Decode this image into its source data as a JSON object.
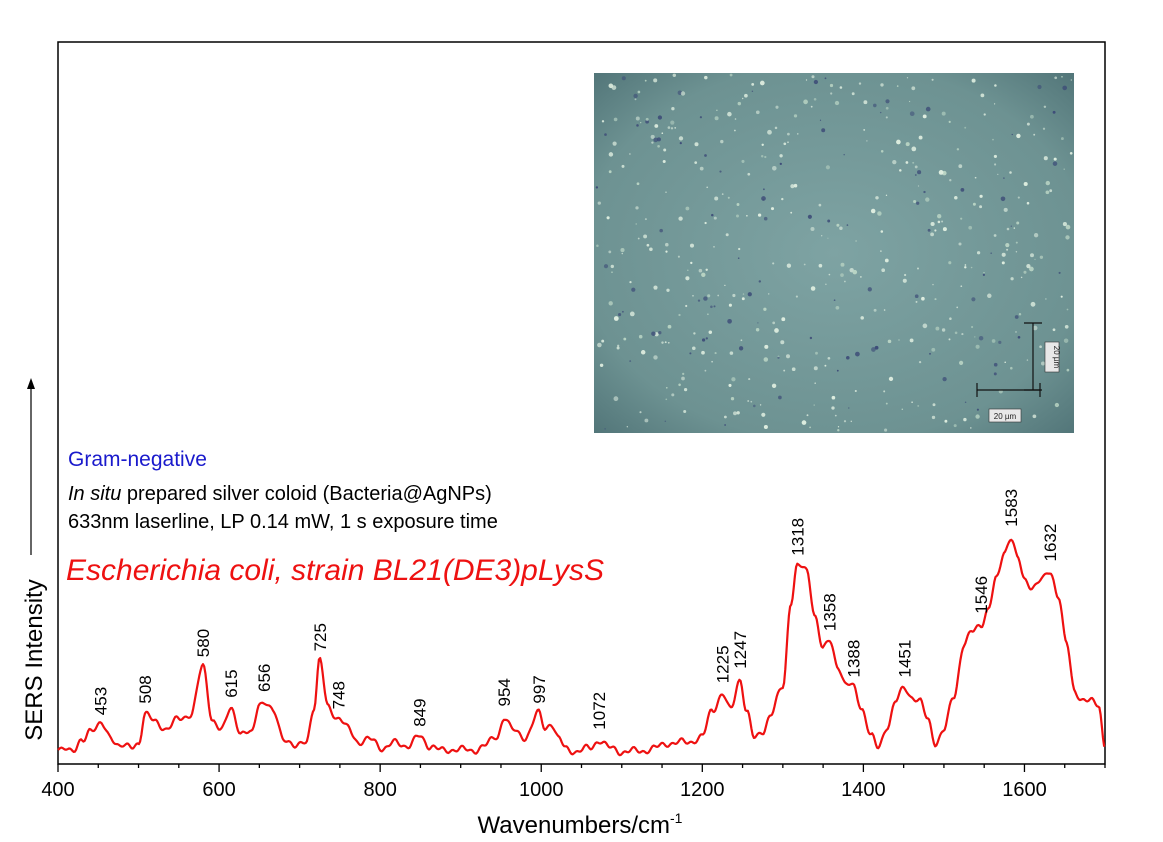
{
  "chart_data": {
    "type": "line",
    "xlabel": "Wavenumbers/cm",
    "xlabel_sup": "-1",
    "ylabel": "SERS Intensity",
    "xlim": [
      400,
      1700
    ],
    "ylim": [
      0,
      100
    ],
    "x_ticks": [
      400,
      600,
      800,
      1000,
      1200,
      1400,
      1600
    ],
    "grid": false,
    "y_ticks_shown": false,
    "annotations": {
      "category": "Gram-negative",
      "prep_italic": "In situ",
      "prep_rest": " prepared silver coloid (Bacteria@AgNPs)",
      "conditions": "633nm laserline, LP 0.14 mW, 1 s exposure time",
      "organism": "Escherichia coli, strain BL21(DE3)pLysS"
    },
    "peak_labels": [
      {
        "x": 453,
        "label": "453"
      },
      {
        "x": 508,
        "label": "508"
      },
      {
        "x": 580,
        "label": "580"
      },
      {
        "x": 615,
        "label": "615"
      },
      {
        "x": 656,
        "label": "656"
      },
      {
        "x": 725,
        "label": "725"
      },
      {
        "x": 748,
        "label": "748"
      },
      {
        "x": 849,
        "label": "849"
      },
      {
        "x": 954,
        "label": "954"
      },
      {
        "x": 997,
        "label": "997"
      },
      {
        "x": 1072,
        "label": "1072"
      },
      {
        "x": 1225,
        "label": "1225"
      },
      {
        "x": 1247,
        "label": "1247"
      },
      {
        "x": 1318,
        "label": "1318"
      },
      {
        "x": 1358,
        "label": "1358"
      },
      {
        "x": 1388,
        "label": "1388"
      },
      {
        "x": 1451,
        "label": "1451"
      },
      {
        "x": 1546,
        "label": "1546"
      },
      {
        "x": 1583,
        "label": "1583"
      },
      {
        "x": 1632,
        "label": "1632"
      }
    ],
    "series": [
      {
        "color": "#ee1111",
        "points": [
          [
            400,
            3
          ],
          [
            410,
            5
          ],
          [
            420,
            3
          ],
          [
            430,
            6
          ],
          [
            440,
            11
          ],
          [
            453,
            12
          ],
          [
            465,
            8
          ],
          [
            478,
            5
          ],
          [
            490,
            4
          ],
          [
            500,
            6
          ],
          [
            508,
            16
          ],
          [
            520,
            13
          ],
          [
            535,
            11
          ],
          [
            550,
            14
          ],
          [
            565,
            16
          ],
          [
            580,
            32
          ],
          [
            592,
            14
          ],
          [
            603,
            10
          ],
          [
            615,
            18
          ],
          [
            628,
            9
          ],
          [
            640,
            9
          ],
          [
            650,
            20
          ],
          [
            656,
            20
          ],
          [
            668,
            16
          ],
          [
            680,
            8
          ],
          [
            695,
            4
          ],
          [
            708,
            7
          ],
          [
            718,
            18
          ],
          [
            725,
            34
          ],
          [
            735,
            19
          ],
          [
            748,
            14
          ],
          [
            760,
            11
          ],
          [
            775,
            6
          ],
          [
            790,
            7
          ],
          [
            805,
            4
          ],
          [
            820,
            6
          ],
          [
            835,
            5
          ],
          [
            849,
            8
          ],
          [
            862,
            5
          ],
          [
            878,
            3
          ],
          [
            895,
            4
          ],
          [
            912,
            3
          ],
          [
            930,
            5
          ],
          [
            945,
            8
          ],
          [
            954,
            15
          ],
          [
            965,
            10
          ],
          [
            980,
            8
          ],
          [
            997,
            16
          ],
          [
            1005,
            11
          ],
          [
            1012,
            13
          ],
          [
            1022,
            7
          ],
          [
            1030,
            4
          ],
          [
            1045,
            3
          ],
          [
            1060,
            4
          ],
          [
            1072,
            7
          ],
          [
            1085,
            4
          ],
          [
            1100,
            3
          ],
          [
            1120,
            3
          ],
          [
            1140,
            4
          ],
          [
            1160,
            6
          ],
          [
            1180,
            6
          ],
          [
            1200,
            8
          ],
          [
            1212,
            17
          ],
          [
            1225,
            23
          ],
          [
            1235,
            17
          ],
          [
            1247,
            28
          ],
          [
            1255,
            17
          ],
          [
            1265,
            7
          ],
          [
            1275,
            10
          ],
          [
            1285,
            16
          ],
          [
            1300,
            25
          ],
          [
            1310,
            55
          ],
          [
            1318,
            67
          ],
          [
            1330,
            65
          ],
          [
            1340,
            50
          ],
          [
            1350,
            38
          ],
          [
            1358,
            41
          ],
          [
            1368,
            33
          ],
          [
            1378,
            26
          ],
          [
            1388,
            25
          ],
          [
            1398,
            18
          ],
          [
            1410,
            8
          ],
          [
            1418,
            4
          ],
          [
            1430,
            12
          ],
          [
            1440,
            20
          ],
          [
            1451,
            25
          ],
          [
            1460,
            22
          ],
          [
            1470,
            20
          ],
          [
            1480,
            14
          ],
          [
            1490,
            6
          ],
          [
            1500,
            10
          ],
          [
            1512,
            22
          ],
          [
            1525,
            40
          ],
          [
            1535,
            44
          ],
          [
            1546,
            47
          ],
          [
            1555,
            52
          ],
          [
            1565,
            62
          ],
          [
            1575,
            72
          ],
          [
            1583,
            77
          ],
          [
            1592,
            69
          ],
          [
            1600,
            62
          ],
          [
            1610,
            60
          ],
          [
            1622,
            62
          ],
          [
            1632,
            65
          ],
          [
            1642,
            57
          ],
          [
            1652,
            40
          ],
          [
            1662,
            24
          ],
          [
            1672,
            21
          ],
          [
            1682,
            20
          ],
          [
            1692,
            19
          ],
          [
            1700,
            5
          ]
        ]
      }
    ],
    "inset": {
      "description_none": "",
      "scale_label_horizontal": "20 µm",
      "scale_label_vertical": "20 µm"
    }
  }
}
